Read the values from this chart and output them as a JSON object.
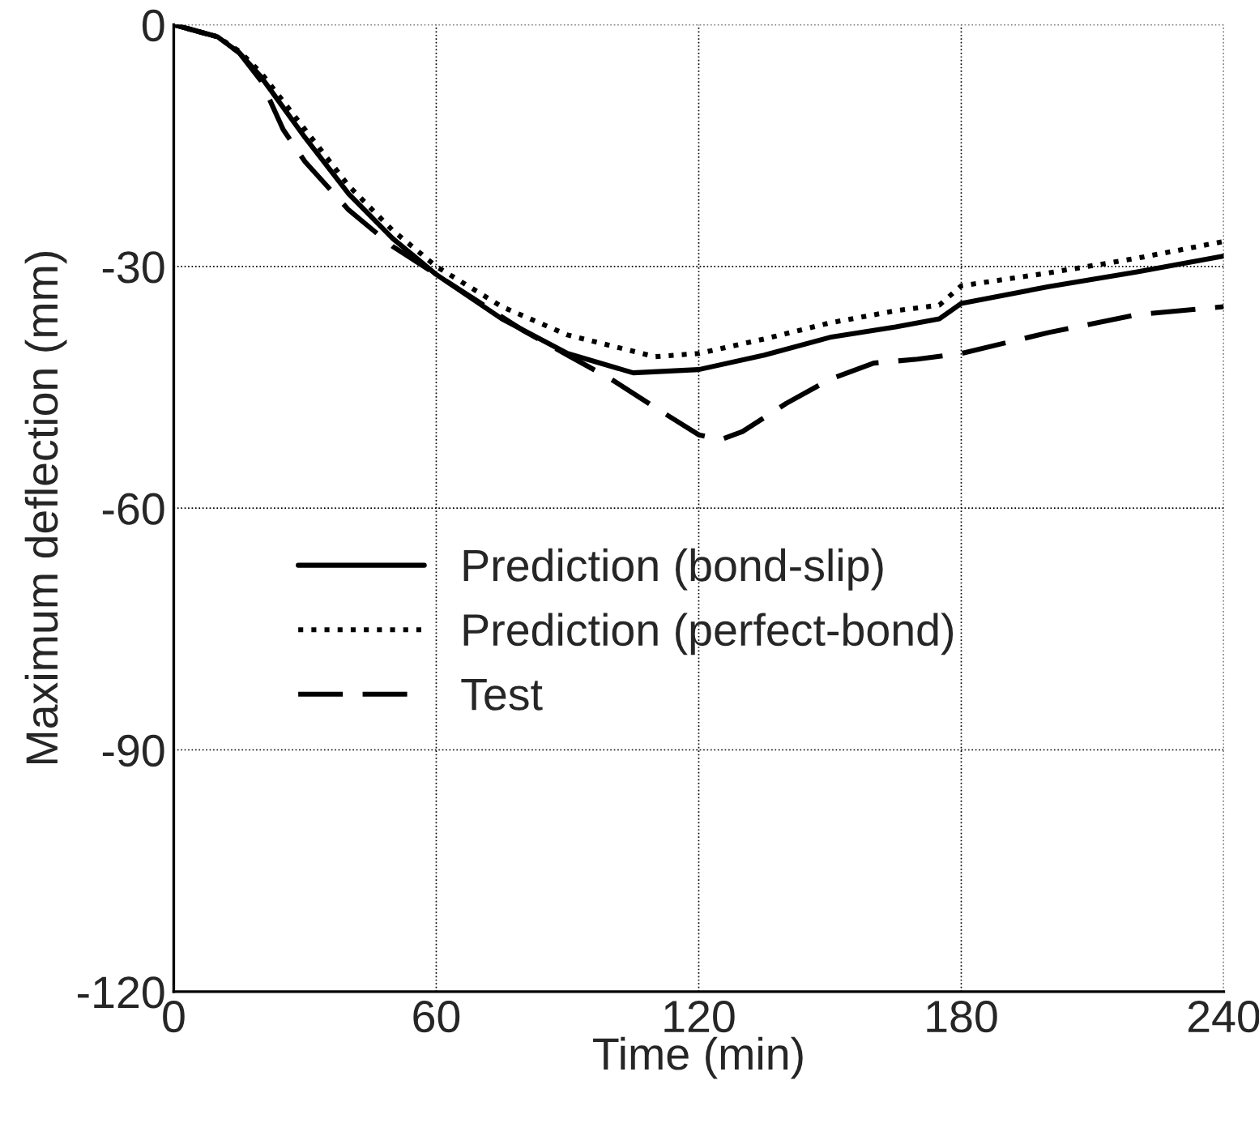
{
  "chart_data": {
    "type": "line",
    "xlabel": "Time (min)",
    "ylabel": "Maximum deflection (mm)",
    "xlim": [
      0,
      240
    ],
    "ylim": [
      -120,
      0
    ],
    "xticks": [
      0,
      60,
      120,
      180,
      240
    ],
    "yticks": [
      -120,
      -90,
      -60,
      -30,
      0
    ],
    "grid": true,
    "legend": "center left",
    "series": [
      {
        "name": "Prediction (bond-slip)",
        "color": "#000000",
        "line_style": "solid",
        "x": [
          0,
          10,
          15,
          20,
          30,
          40,
          50,
          60,
          75,
          90,
          105,
          120,
          135,
          150,
          165,
          175,
          180,
          200,
          220,
          240
        ],
        "values": [
          0,
          -1.5,
          -3.5,
          -6.5,
          -14,
          -21,
          -26.5,
          -31,
          -36.5,
          -40.8,
          -43.2,
          -42.8,
          -41,
          -38.8,
          -37.5,
          -36.5,
          -34.6,
          -32.5,
          -30.7,
          -28.7
        ]
      },
      {
        "name": "Prediction (perfect-bond)",
        "color": "#000000",
        "line_style": "dotted",
        "x": [
          0,
          10,
          15,
          20,
          30,
          40,
          50,
          60,
          75,
          90,
          110,
          120,
          135,
          150,
          165,
          175,
          180,
          200,
          220,
          240
        ],
        "values": [
          0,
          -1.5,
          -3.3,
          -6,
          -13,
          -20,
          -25.5,
          -30,
          -35,
          -38.5,
          -41.2,
          -40.8,
          -39,
          -37,
          -35.5,
          -34.8,
          -32.4,
          -30.8,
          -29,
          -26.9
        ]
      },
      {
        "name": "Test",
        "color": "#000000",
        "line_style": "dashed",
        "x": [
          0,
          10,
          15,
          20,
          25,
          30,
          40,
          50,
          60,
          70,
          80,
          90,
          100,
          110,
          120,
          125,
          130,
          140,
          150,
          160,
          170,
          180,
          200,
          220,
          240
        ],
        "values": [
          0,
          -1.5,
          -3.5,
          -7,
          -13,
          -17,
          -23,
          -27.5,
          -31,
          -34.5,
          -38,
          -41,
          -44,
          -47.5,
          -50.9,
          -51.5,
          -50.5,
          -47,
          -44,
          -42,
          -41.5,
          -40.8,
          -38.2,
          -36,
          -35
        ]
      }
    ]
  }
}
